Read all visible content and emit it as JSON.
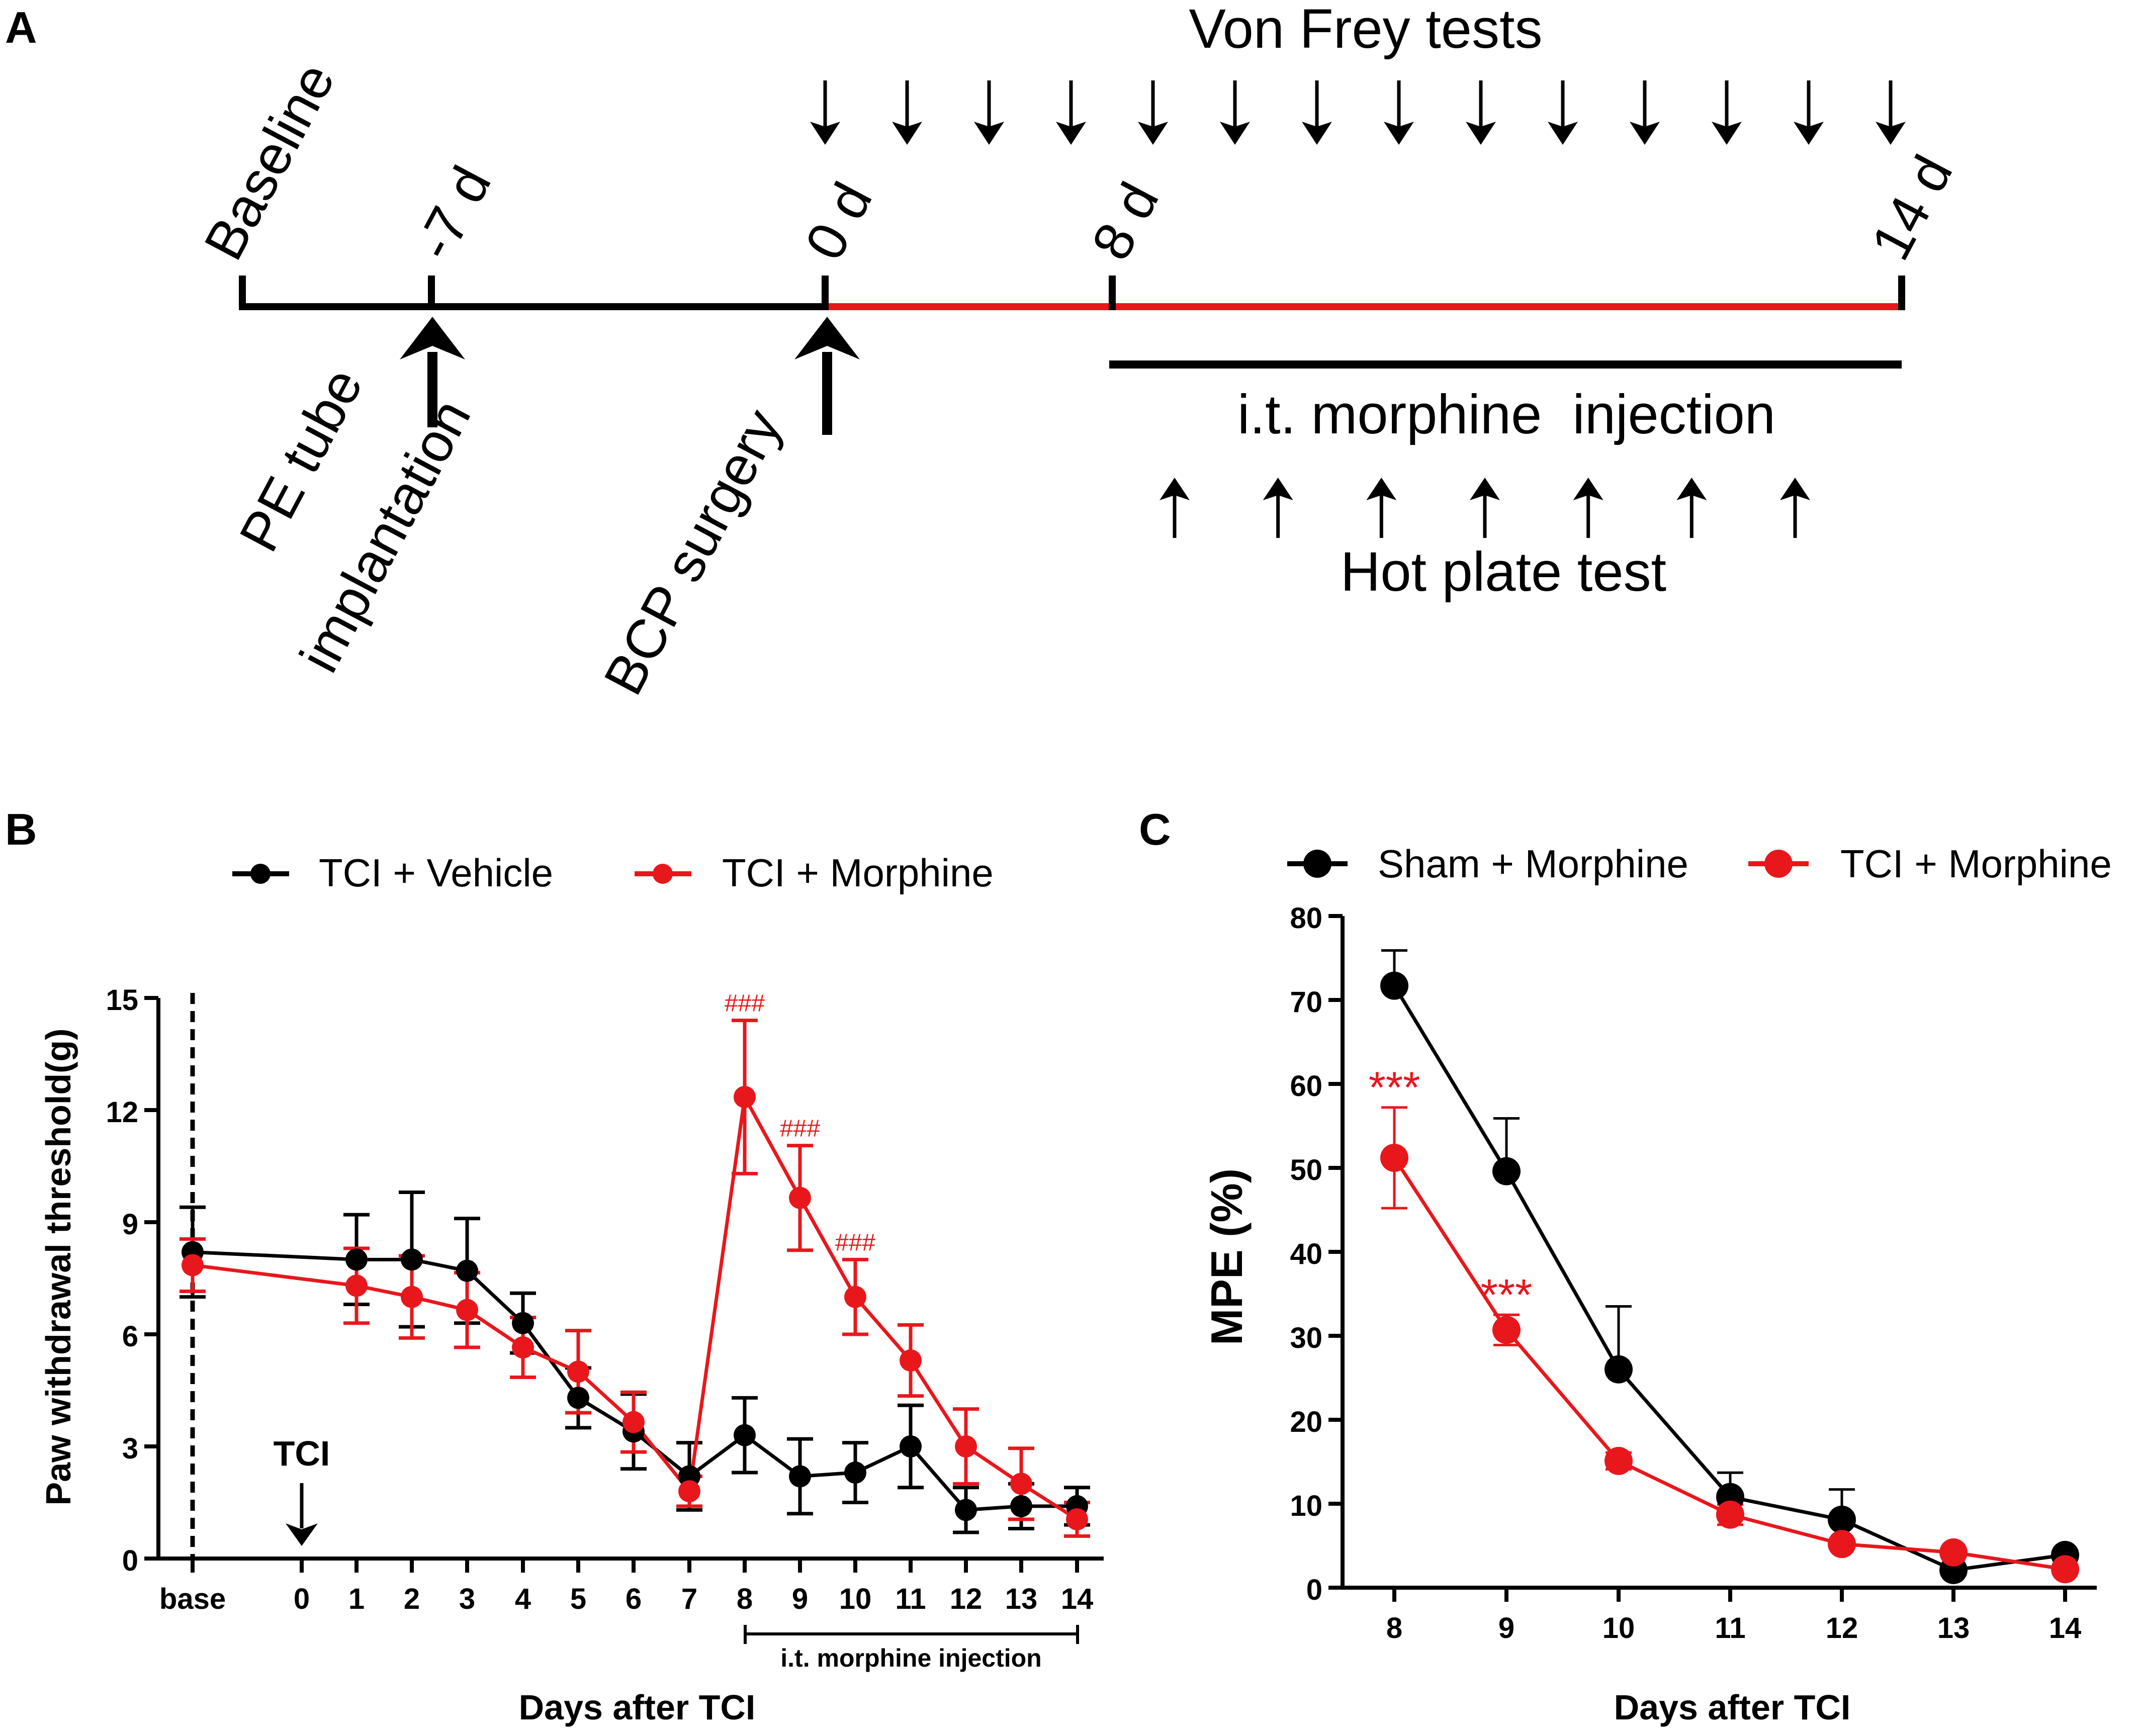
{
  "colors": {
    "black": "#000000",
    "red": "#e8171c"
  },
  "panelA": {
    "label": "A",
    "title": "Von Frey tests",
    "timeline_labels": [
      "Baseline",
      "-7 d",
      "0 d",
      "8 d",
      "14 d"
    ],
    "pe_tube": "PE tube",
    "implantation": "implantation",
    "bcp_surgery": "BCP surgery",
    "injection": "i.t. morphine  injection",
    "hot_plate": "Hot plate test",
    "von_frey_arrow_count": 14,
    "hot_plate_arrow_count": 7,
    "icons": {
      "down_arrow": "down-arrow-icon",
      "up_arrow": "up-arrow-icon"
    }
  },
  "panelB": {
    "label": "B",
    "marker_label": "TCI",
    "injection_label": "i.t. morphine injection",
    "chart_data": {
      "type": "line",
      "title": "",
      "xlabel": "Days after TCI",
      "ylabel": "Paw withdrawal threshold(g)",
      "categories": [
        "base",
        "0",
        "1",
        "2",
        "3",
        "4",
        "5",
        "6",
        "7",
        "8",
        "9",
        "10",
        "11",
        "12",
        "13",
        "14"
      ],
      "yticks": [
        "0",
        "3",
        "6",
        "9",
        "12",
        "15"
      ],
      "ylim": [
        0,
        15
      ],
      "legend": "top",
      "series": [
        {
          "name": "TCI + Vehicle",
          "color": "#000000",
          "values": [
            8.2,
            null,
            8.0,
            8.0,
            7.7,
            6.3,
            4.3,
            3.4,
            2.2,
            3.3,
            2.2,
            2.3,
            3.0,
            1.3,
            1.4,
            1.4
          ],
          "errors": [
            1.2,
            null,
            1.2,
            1.8,
            1.4,
            0.8,
            0.8,
            1.0,
            0.9,
            1.0,
            1.0,
            0.8,
            1.1,
            0.6,
            0.6,
            0.5
          ]
        },
        {
          "name": "TCI + Morphine",
          "color": "#e8171c",
          "values": [
            7.85,
            null,
            7.3,
            7.0,
            6.65,
            5.65,
            5.0,
            3.65,
            1.8,
            12.35,
            9.65,
            7.0,
            5.3,
            3.0,
            2.0,
            1.05
          ],
          "errors": [
            0.7,
            null,
            1.0,
            1.1,
            1.0,
            0.8,
            1.1,
            0.8,
            0.4,
            2.05,
            1.4,
            1.0,
            0.95,
            1.0,
            0.95,
            0.45
          ]
        }
      ],
      "annotations": [
        {
          "text": "###",
          "category": "8"
        },
        {
          "text": "###",
          "category": "9"
        },
        {
          "text": "###",
          "category": "10"
        }
      ]
    }
  },
  "panelC": {
    "label": "C",
    "chart_data": {
      "type": "line",
      "title": "",
      "xlabel": "Days after TCI",
      "ylabel": "MPE (%)",
      "categories": [
        "8",
        "9",
        "10",
        "11",
        "12",
        "13",
        "14"
      ],
      "yticks": [
        "0",
        "10",
        "20",
        "30",
        "40",
        "50",
        "60",
        "70",
        "80"
      ],
      "ylim": [
        0,
        80
      ],
      "legend": "top",
      "series": [
        {
          "name": "Sham + Morphine",
          "color": "#000000",
          "values": [
            71.7,
            49.6,
            26.0,
            10.8,
            8.1,
            2.1,
            3.9
          ],
          "errors": [
            4.2,
            6.3,
            7.5,
            2.9,
            3.6,
            0.3,
            0.3
          ]
        },
        {
          "name": "TCI + Morphine",
          "color": "#e8171c",
          "values": [
            51.2,
            30.7,
            15.1,
            8.7,
            5.2,
            4.2,
            2.2
          ],
          "errors": [
            6.0,
            1.8,
            1.0,
            1.2,
            0.3,
            0.3,
            0.3
          ]
        }
      ],
      "annotations": [
        {
          "text": "***",
          "category": "8"
        },
        {
          "text": "***",
          "category": "9"
        }
      ]
    }
  }
}
